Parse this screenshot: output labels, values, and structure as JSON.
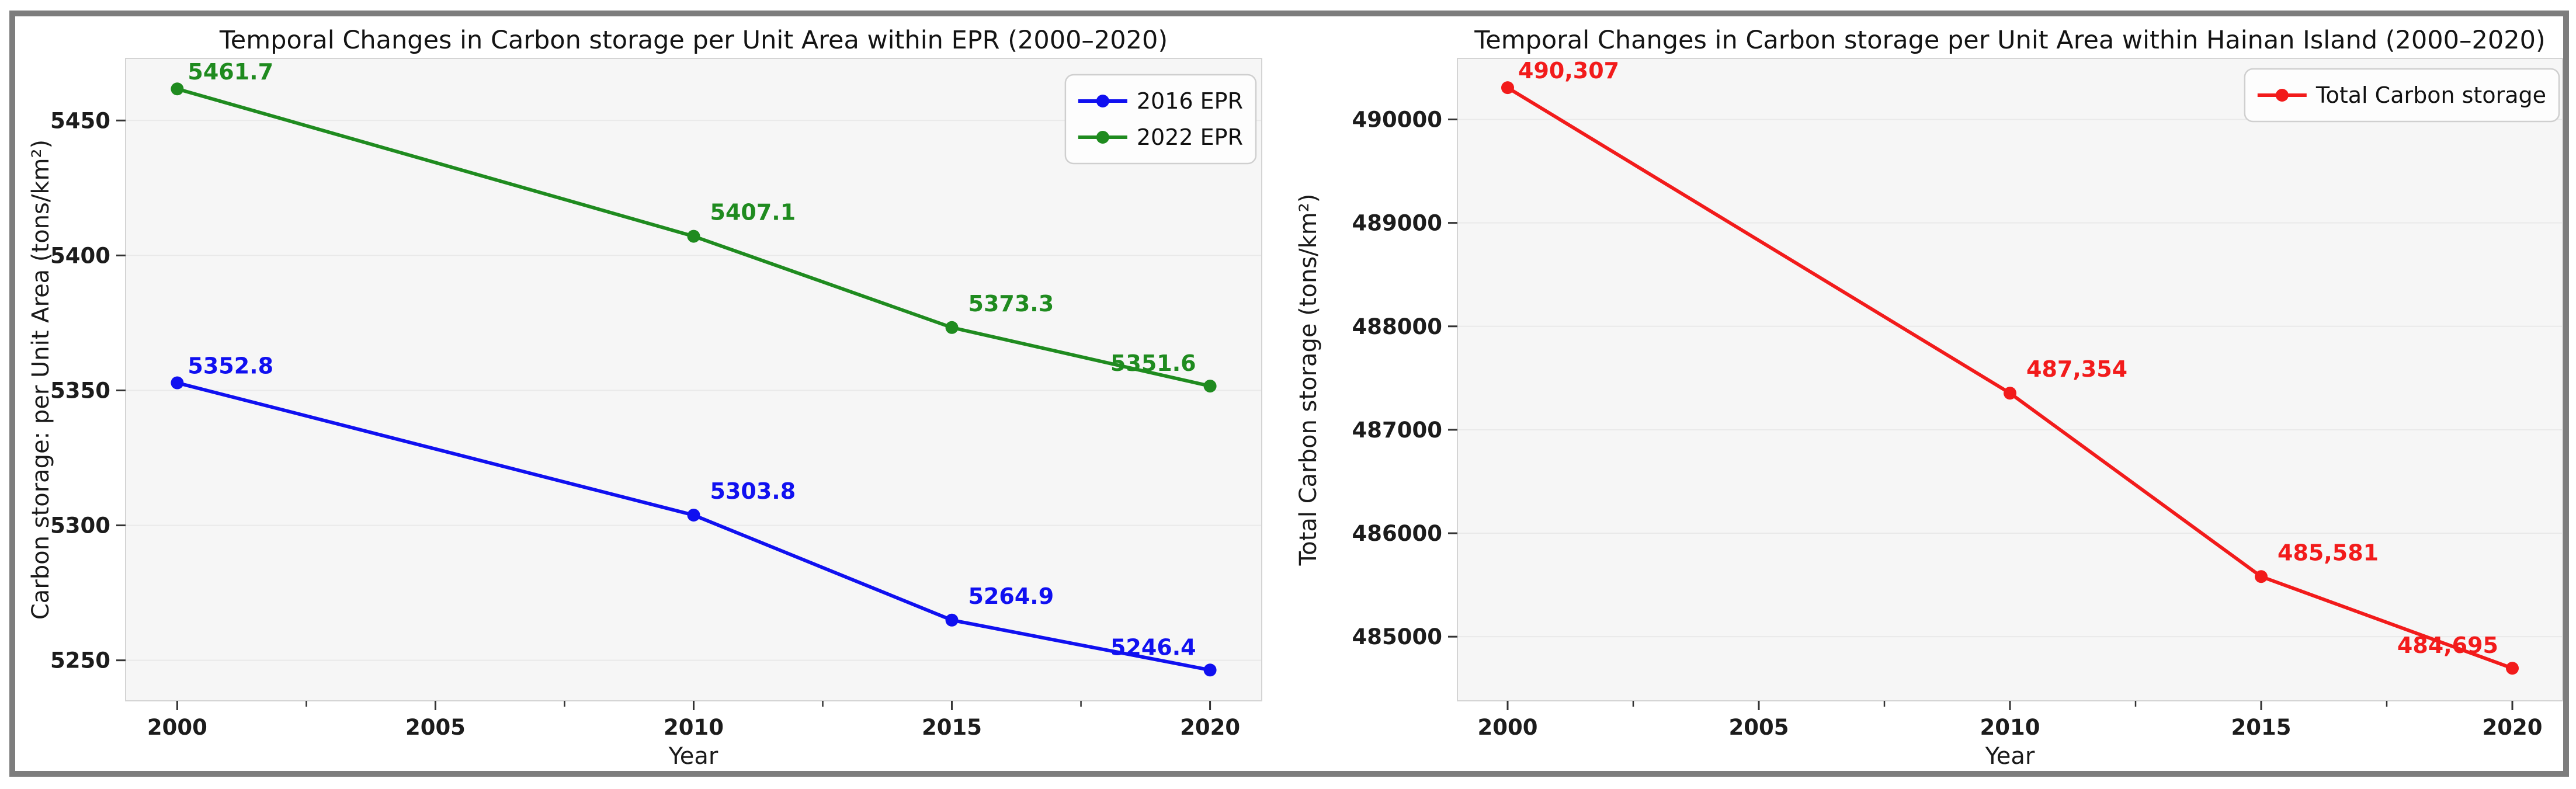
{
  "frame": {
    "border_color": "#7d7d7d",
    "background": "#ffffff"
  },
  "theme": {
    "plot_background": "#f6f6f6",
    "gridline_color": "#e9e9e9",
    "spine_color": "#d4d4d4",
    "tick_color": "#333333",
    "tick_label_color": "#1c1c1c",
    "legend_background": "#fdfdfd",
    "legend_border": "#cfcfcf",
    "legend_text_color": "#111111"
  },
  "chart_data": [
    {
      "type": "line",
      "title": "Temporal Changes in Carbon storage per Unit Area within EPR (2000–2020)",
      "xlabel": "Year",
      "ylabel": "Carbon storage: per Unit Area (tons/km²)",
      "x": [
        2000,
        2010,
        2015,
        2020
      ],
      "xticks": [
        2000,
        2005,
        2010,
        2015,
        2020
      ],
      "yticks": [
        5250,
        5300,
        5350,
        5400,
        5450
      ],
      "xlim": [
        1999,
        2021
      ],
      "ylim": [
        5235,
        5473
      ],
      "grid": "horizontal",
      "legend_position": "top-right",
      "series": [
        {
          "name": "2016 EPR",
          "color": "#1010f0",
          "values": [
            5352.8,
            5303.8,
            5264.9,
            5246.4
          ],
          "labels": [
            "5352.8",
            "5303.8",
            "5264.9",
            "5246.4"
          ]
        },
        {
          "name": "2022 EPR",
          "color": "#1f8b1f",
          "values": [
            5461.7,
            5407.1,
            5373.3,
            5351.6
          ],
          "labels": [
            "5461.7",
            "5407.1",
            "5373.3",
            "5351.6"
          ]
        }
      ]
    },
    {
      "type": "line",
      "title": "Temporal Changes in Carbon storage per Unit Area within Hainan Island (2000–2020)",
      "xlabel": "Year",
      "ylabel": "Total Carbon storage (tons/km²)",
      "x": [
        2000,
        2010,
        2015,
        2020
      ],
      "xticks": [
        2000,
        2005,
        2010,
        2015,
        2020
      ],
      "yticks": [
        485000,
        486000,
        487000,
        488000,
        489000,
        490000
      ],
      "xlim": [
        1999,
        2021
      ],
      "ylim": [
        484380,
        490590
      ],
      "grid": "horizontal",
      "legend_position": "top-right",
      "series": [
        {
          "name": "Total Carbon storage",
          "color": "#f21b1b",
          "values": [
            490307,
            487354,
            485581,
            484695
          ],
          "labels": [
            "490,307",
            "487,354",
            "485,581",
            "484,695"
          ]
        }
      ]
    }
  ]
}
